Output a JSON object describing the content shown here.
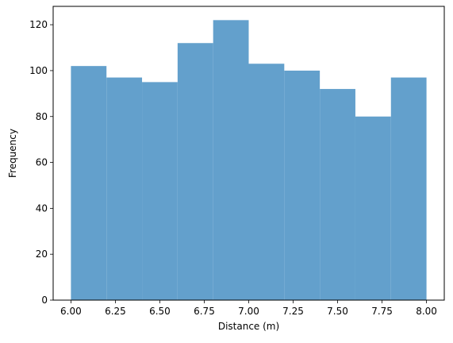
{
  "chart_data": {
    "type": "bar",
    "histogram": true,
    "bin_edges": [
      6.0,
      6.2,
      6.4,
      6.6,
      6.8,
      7.0,
      7.2,
      7.4,
      7.6,
      7.8,
      8.0
    ],
    "values": [
      102,
      97,
      95,
      112,
      122,
      103,
      100,
      92,
      80,
      97
    ],
    "xlabel": "Distance (m)",
    "ylabel": "Frequency",
    "xlim": [
      5.9,
      8.1
    ],
    "ylim": [
      0,
      128
    ],
    "xticks": [
      6.0,
      6.25,
      6.5,
      6.75,
      7.0,
      7.25,
      7.5,
      7.75,
      8.0
    ],
    "xtick_labels": [
      "6.00",
      "6.25",
      "6.50",
      "6.75",
      "7.00",
      "7.25",
      "7.50",
      "7.75",
      "8.00"
    ],
    "yticks": [
      0,
      20,
      40,
      60,
      80,
      100,
      120
    ],
    "ytick_labels": [
      "0",
      "20",
      "40",
      "60",
      "80",
      "100",
      "120"
    ],
    "bar_color": "#63a0cc",
    "grid": false,
    "legend": "none"
  }
}
